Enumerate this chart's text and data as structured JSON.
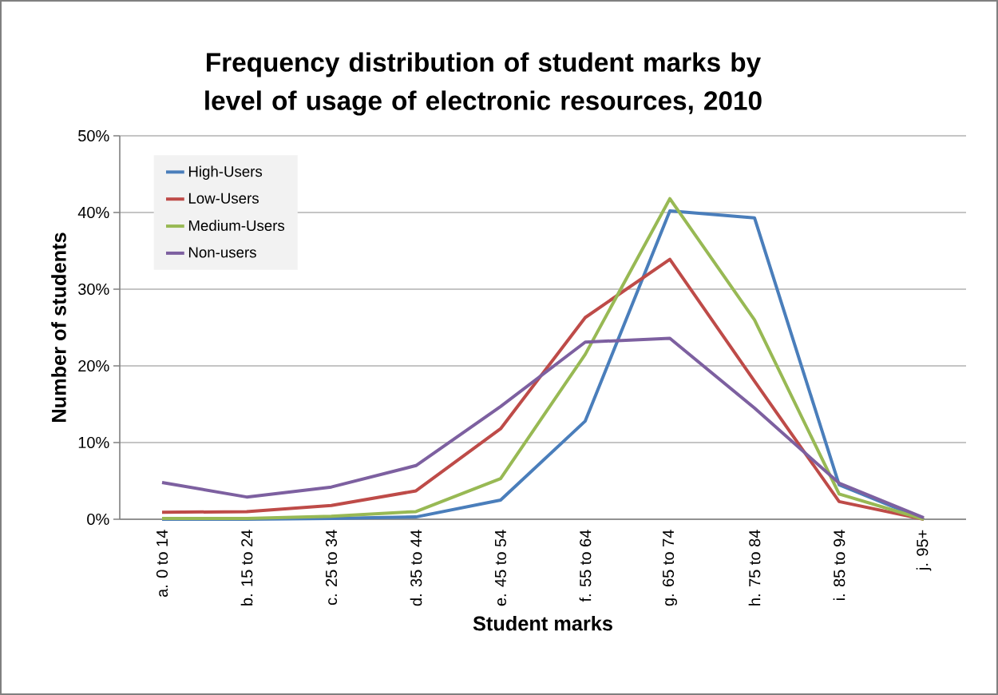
{
  "chart_data": {
    "type": "line",
    "title": "Frequency distribution of student marks by level of usage of electronic resources, 2010",
    "xlabel": "Student marks",
    "ylabel": "Number of students",
    "categories": [
      "a. 0 to 14",
      "b. 15 to 24",
      "c. 25 to 34",
      "d. 35 to 44",
      "e. 45 to 54",
      "f. 55 to 64",
      "g. 65 to 74",
      "h. 75 to 84",
      "i. 85 to 94",
      "j. 95+"
    ],
    "series": [
      {
        "name": "High-Users",
        "color": "#4a7ebb",
        "values": [
          0,
          0,
          0.1,
          0.3,
          2.5,
          12.8,
          40.2,
          39.3,
          4.5,
          0
        ]
      },
      {
        "name": "Low-Users",
        "color": "#be4b48",
        "values": [
          0.9,
          1.0,
          1.8,
          3.7,
          11.8,
          26.3,
          33.9,
          18,
          2.3,
          0
        ]
      },
      {
        "name": "Medium-Users",
        "color": "#98b954",
        "values": [
          0.1,
          0.1,
          0.4,
          1.0,
          5.3,
          21.5,
          41.8,
          26,
          3.3,
          0
        ]
      },
      {
        "name": "Non-users",
        "color": "#7d60a0",
        "values": [
          4.8,
          2.9,
          4.2,
          7.0,
          14.7,
          23.1,
          23.6,
          14.5,
          4.7,
          0.2
        ]
      }
    ],
    "ylim": [
      0,
      50
    ],
    "yticks": [
      {
        "value": 0,
        "label": "0%"
      },
      {
        "value": 10,
        "label": "10%"
      },
      {
        "value": 20,
        "label": "20%"
      },
      {
        "value": 30,
        "label": "30%"
      },
      {
        "value": 40,
        "label": "40%"
      },
      {
        "value": 50,
        "label": "50%"
      }
    ],
    "grid": "y",
    "legend": "top left",
    "marker": "none",
    "line_style": "solid"
  }
}
